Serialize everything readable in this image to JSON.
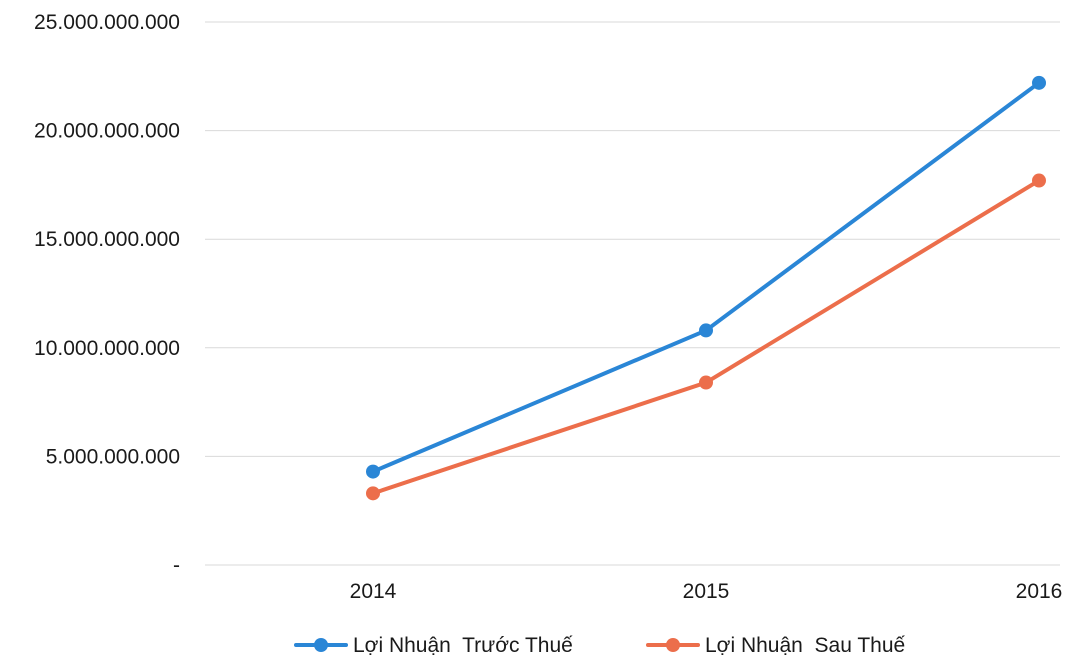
{
  "chart_data": {
    "type": "line",
    "categories": [
      "2014",
      "2015",
      "2016"
    ],
    "series": [
      {
        "name": "Lợi Nhuận  Trước Thuế",
        "values": [
          4300000000,
          10800000000,
          22200000000
        ],
        "color": "#2a86d6"
      },
      {
        "name": "Lợi Nhuận  Sau Thuế",
        "values": [
          3300000000,
          8400000000,
          17700000000
        ],
        "color": "#ec6e4b"
      }
    ],
    "ylim": [
      0,
      25000000000
    ],
    "yticks": [
      0,
      5000000000,
      10000000000,
      15000000000,
      20000000000,
      25000000000
    ],
    "ytick_labels": [
      "-",
      "5.000.000.000",
      "10.000.000.000",
      "15.000.000.000",
      "20.000.000.000",
      "25.000.000.000"
    ],
    "grid": true,
    "legend_position": "bottom",
    "title": "",
    "xlabel": "",
    "ylabel": ""
  }
}
